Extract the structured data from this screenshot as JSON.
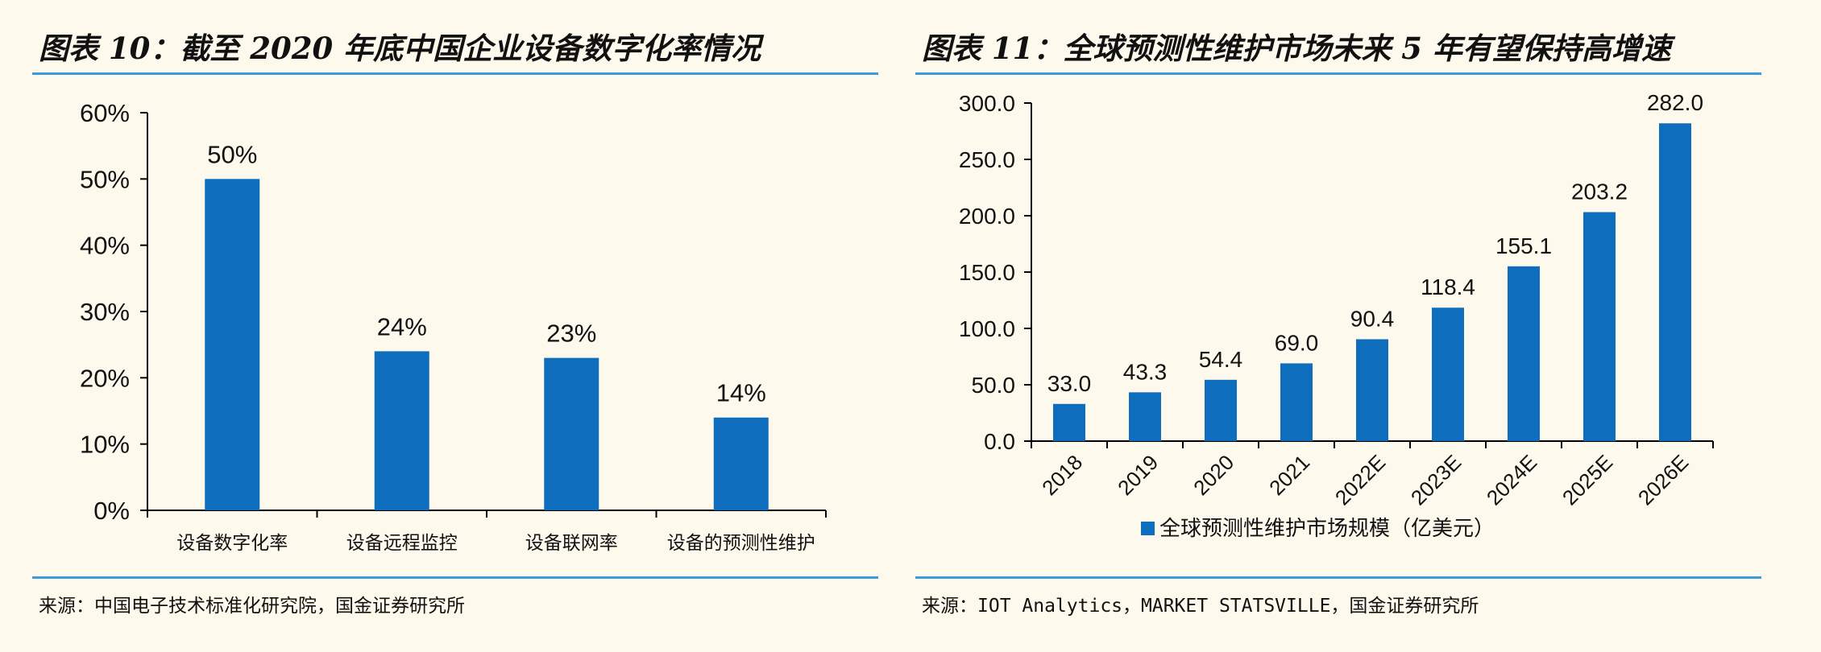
{
  "panel1": {
    "title": "图表 10：截至 2020 年底中国企业设备数字化率情况",
    "source": "来源：中国电子技术标准化研究院，国金证券研究所"
  },
  "panel2": {
    "title": "图表 11：全球预测性维护市场未来 5 年有望保持高增速",
    "source": "来源：IOT Analytics，MARKET STATSVILLE，国金证券研究所"
  },
  "bottom_text": "",
  "colors": {
    "bar": "#0e6ebd",
    "rule": "#3d9ad8",
    "background": "#fdf9ec"
  },
  "chart_data": [
    {
      "type": "bar",
      "title": "",
      "categories": [
        "设备数字化率",
        "设备远程监控",
        "设备联网率",
        "设备的预测性维护"
      ],
      "values": [
        50,
        24,
        23,
        14
      ],
      "value_labels": [
        "50%",
        "24%",
        "23%",
        "14%"
      ],
      "ylim": [
        0,
        60
      ],
      "yticks": [
        "0%",
        "10%",
        "20%",
        "30%",
        "40%",
        "50%",
        "60%"
      ],
      "xlabel": "",
      "ylabel": "",
      "grid": false,
      "legend": null
    },
    {
      "type": "bar",
      "title": "",
      "categories": [
        "2018",
        "2019",
        "2020",
        "2021",
        "2022E",
        "2023E",
        "2024E",
        "2025E",
        "2026E"
      ],
      "series": [
        {
          "name": "全球预测性维护市场规模（亿美元）",
          "values": [
            33.0,
            43.3,
            54.4,
            69.0,
            90.4,
            118.4,
            155.1,
            203.2,
            282.0
          ]
        }
      ],
      "value_labels": [
        "33.0",
        "43.3",
        "54.4",
        "69.0",
        "90.4",
        "118.4",
        "155.1",
        "203.2",
        "282.0"
      ],
      "ylim": [
        0,
        300
      ],
      "yticks": [
        "0.0",
        "50.0",
        "100.0",
        "150.0",
        "200.0",
        "250.0",
        "300.0"
      ],
      "xlabel": "",
      "ylabel": "",
      "grid": false,
      "legend": "bottom-center"
    }
  ]
}
